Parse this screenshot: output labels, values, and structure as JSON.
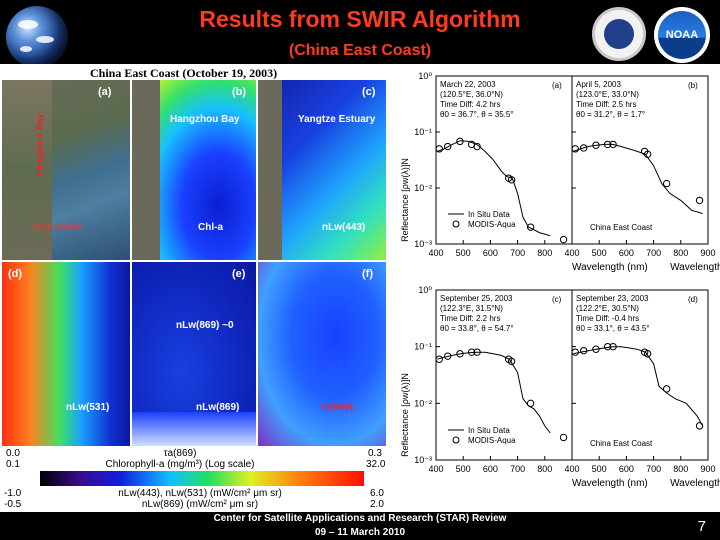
{
  "header": {
    "title": "Results from SWIR Algorithm",
    "subtitle": "(China East Coast)",
    "noaa_logo_text": "NOAA"
  },
  "figure": {
    "caption": "China East Coast (October 19, 2003)",
    "panels": [
      {
        "letter": "(a)",
        "name": "True Color",
        "annotations": [
          "Hangzhou Bay",
          "Yangtze Estuary"
        ]
      },
      {
        "letter": "(b)",
        "name": "Chl-a",
        "annotations": [
          "Hangzhou Bay"
        ]
      },
      {
        "letter": "(c)",
        "name": "nLw(443)",
        "annotations": [
          "Yangtze Estuary"
        ]
      },
      {
        "letter": "(d)",
        "name": "nLw(531)",
        "annotations": []
      },
      {
        "letter": "(e)",
        "name": "nLw(869)",
        "annotations": [
          "nLw(869) ~0"
        ]
      },
      {
        "letter": "(f)",
        "name": "τa(869)",
        "annotations": []
      }
    ],
    "colorbar": {
      "row1": {
        "left": "0.0",
        "label": "τa(869)",
        "right": "0.3"
      },
      "row2": {
        "left": "0.1",
        "label": "Chlorophyll-a (mg/m³) (Log scale)",
        "right": "32.0"
      },
      "row3": {
        "left": "-1.0",
        "label": "nLw(443), nLw(531) (mW/cm² μm sr)",
        "right": "6.0"
      },
      "row4": {
        "left": "-0.5",
        "label": "nLw(869) (mW/cm² μm sr)",
        "right": "2.0"
      }
    }
  },
  "chart_data": [
    {
      "type": "line",
      "panel": "(a)",
      "header": [
        "March 22, 2003",
        "(120.5°E, 36.0°N)",
        "Time Diff: 4.2 hrs",
        "θ0 = 36.7°, θ = 35.5°"
      ],
      "xlabel": "Wavelength (nm)",
      "ylabel": "Reflectance [ρw(λ)]N",
      "x_ticks": [
        400,
        500,
        600,
        700,
        800
      ],
      "y_ticks": [
        "10⁻³",
        "10⁻²",
        "10⁻¹",
        "10⁰"
      ],
      "ylim": [
        0.001,
        1
      ],
      "legend": [
        "In Situ Data",
        "MODIS-Aqua"
      ],
      "series": [
        {
          "name": "In Situ Data",
          "x": [
            405,
            430,
            460,
            490,
            520,
            550,
            580,
            610,
            640,
            660,
            680,
            700,
            720,
            740,
            760,
            780,
            800,
            820
          ],
          "y": [
            0.045,
            0.05,
            0.06,
            0.07,
            0.068,
            0.06,
            0.045,
            0.032,
            0.02,
            0.016,
            0.015,
            0.008,
            0.003,
            0.002,
            0.0018,
            0.0016,
            0.0015,
            0.0014
          ]
        },
        {
          "name": "MODIS-Aqua",
          "x": [
            412,
            443,
            488,
            531,
            551,
            667,
            678,
            748,
            869
          ],
          "y": [
            0.05,
            0.055,
            0.068,
            0.06,
            0.055,
            0.015,
            0.014,
            0.002,
            0.0012
          ]
        }
      ]
    },
    {
      "type": "line",
      "panel": "(b)",
      "header": [
        "April 5, 2003",
        "(123.0°E, 33.0°N)",
        "Time Diff: 2.5 hrs",
        "θ0 = 31.2°, θ = 1.7°"
      ],
      "xlabel": "Wavelength (nm)",
      "x_ticks": [
        400,
        500,
        600,
        700,
        800,
        900
      ],
      "ylim": [
        0.001,
        1
      ],
      "annotation": "China East Coast",
      "series": [
        {
          "name": "In Situ Data",
          "x": [
            405,
            430,
            460,
            490,
            520,
            550,
            580,
            610,
            640,
            670,
            700,
            730,
            760,
            800,
            840,
            880
          ],
          "y": [
            0.045,
            0.05,
            0.055,
            0.058,
            0.06,
            0.06,
            0.055,
            0.05,
            0.045,
            0.04,
            0.025,
            0.012,
            0.008,
            0.006,
            0.004,
            0.0035
          ]
        },
        {
          "name": "MODIS-Aqua",
          "x": [
            412,
            443,
            488,
            531,
            551,
            667,
            678,
            748,
            869
          ],
          "y": [
            0.05,
            0.052,
            0.058,
            0.06,
            0.06,
            0.045,
            0.04,
            0.012,
            0.006
          ]
        }
      ]
    },
    {
      "type": "line",
      "panel": "(c)",
      "header": [
        "September 25, 2003",
        "(122.3°E, 31.5°N)",
        "Time Diff: 2.2 hrs",
        "θ0 = 33.8°, θ = 54.7°"
      ],
      "xlabel": "Wavelength (nm)",
      "ylabel": "Reflectance [ρw(λ)]N",
      "x_ticks": [
        400,
        500,
        600,
        700,
        800
      ],
      "ylim": [
        0.001,
        1
      ],
      "legend": [
        "In Situ Data",
        "MODIS-Aqua"
      ],
      "series": [
        {
          "name": "In Situ Data",
          "x": [
            405,
            430,
            460,
            490,
            520,
            550,
            580,
            610,
            640,
            670,
            700,
            720,
            740,
            760,
            780,
            800,
            820
          ],
          "y": [
            0.06,
            0.065,
            0.07,
            0.075,
            0.078,
            0.08,
            0.08,
            0.075,
            0.07,
            0.06,
            0.035,
            0.012,
            0.009,
            0.008,
            0.006,
            0.004,
            0.003
          ]
        },
        {
          "name": "MODIS-Aqua",
          "x": [
            412,
            443,
            488,
            531,
            551,
            667,
            678,
            748,
            869
          ],
          "y": [
            0.06,
            0.068,
            0.075,
            0.08,
            0.08,
            0.06,
            0.055,
            0.01,
            0.0025
          ]
        }
      ]
    },
    {
      "type": "line",
      "panel": "(d)",
      "header": [
        "September 23, 2003",
        "(122.2°E, 30.5°N)",
        "Time Diff: -0.4 hrs",
        "θ0 = 33.1°, θ = 43.5°"
      ],
      "xlabel": "Wavelength (nm)",
      "x_ticks": [
        400,
        500,
        600,
        700,
        800,
        900
      ],
      "ylim": [
        0.001,
        1
      ],
      "annotation": "China East Coast",
      "series": [
        {
          "name": "In Situ Data",
          "x": [
            405,
            430,
            460,
            490,
            520,
            550,
            580,
            610,
            640,
            670,
            700,
            720,
            750,
            780,
            820,
            860,
            880
          ],
          "y": [
            0.075,
            0.08,
            0.085,
            0.09,
            0.095,
            0.1,
            0.1,
            0.095,
            0.09,
            0.08,
            0.05,
            0.02,
            0.015,
            0.012,
            0.01,
            0.006,
            0.004
          ]
        },
        {
          "name": "MODIS-Aqua",
          "x": [
            412,
            443,
            488,
            531,
            551,
            667,
            678,
            748,
            869
          ],
          "y": [
            0.08,
            0.085,
            0.09,
            0.1,
            0.1,
            0.08,
            0.075,
            0.018,
            0.004
          ]
        }
      ]
    }
  ],
  "footer": {
    "line1": "Center for Satellite Applications and Research (STAR) Review",
    "line2": "09 – 11 March 2010",
    "page_number": "7"
  }
}
